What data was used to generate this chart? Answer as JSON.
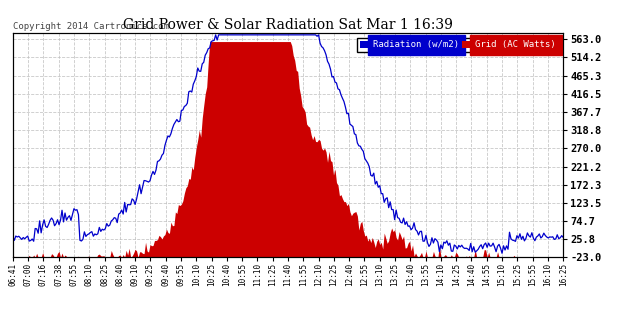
{
  "title": "Grid Power & Solar Radiation Sat Mar 1 16:39",
  "copyright": "Copyright 2014 Cartronics.com",
  "legend_labels": [
    "Radiation (w/m2)",
    "Grid (AC Watts)"
  ],
  "legend_colors": [
    "#0000dd",
    "#dd0000"
  ],
  "background_color": "#ffffff",
  "plot_bg_color": "#ffffff",
  "grid_color": "#bbbbbb",
  "yticks": [
    563.0,
    514.2,
    465.3,
    416.5,
    367.7,
    318.8,
    270.0,
    221.2,
    172.3,
    123.5,
    74.7,
    25.8,
    -23.0
  ],
  "ymin": -23.0,
  "ymax": 580.0,
  "radiation_color": "#0000cc",
  "grid_fill_color": "#cc0000",
  "xtick_labels": [
    "06:41",
    "07:00",
    "07:16",
    "07:38",
    "07:55",
    "08:10",
    "08:25",
    "08:40",
    "09:10",
    "09:25",
    "09:40",
    "09:55",
    "10:10",
    "10:25",
    "10:40",
    "10:55",
    "11:10",
    "11:25",
    "11:40",
    "11:55",
    "12:10",
    "12:25",
    "12:40",
    "12:55",
    "13:10",
    "13:25",
    "13:40",
    "13:55",
    "14:10",
    "14:25",
    "14:40",
    "14:55",
    "15:10",
    "15:25",
    "15:55",
    "16:10",
    "16:25"
  ]
}
